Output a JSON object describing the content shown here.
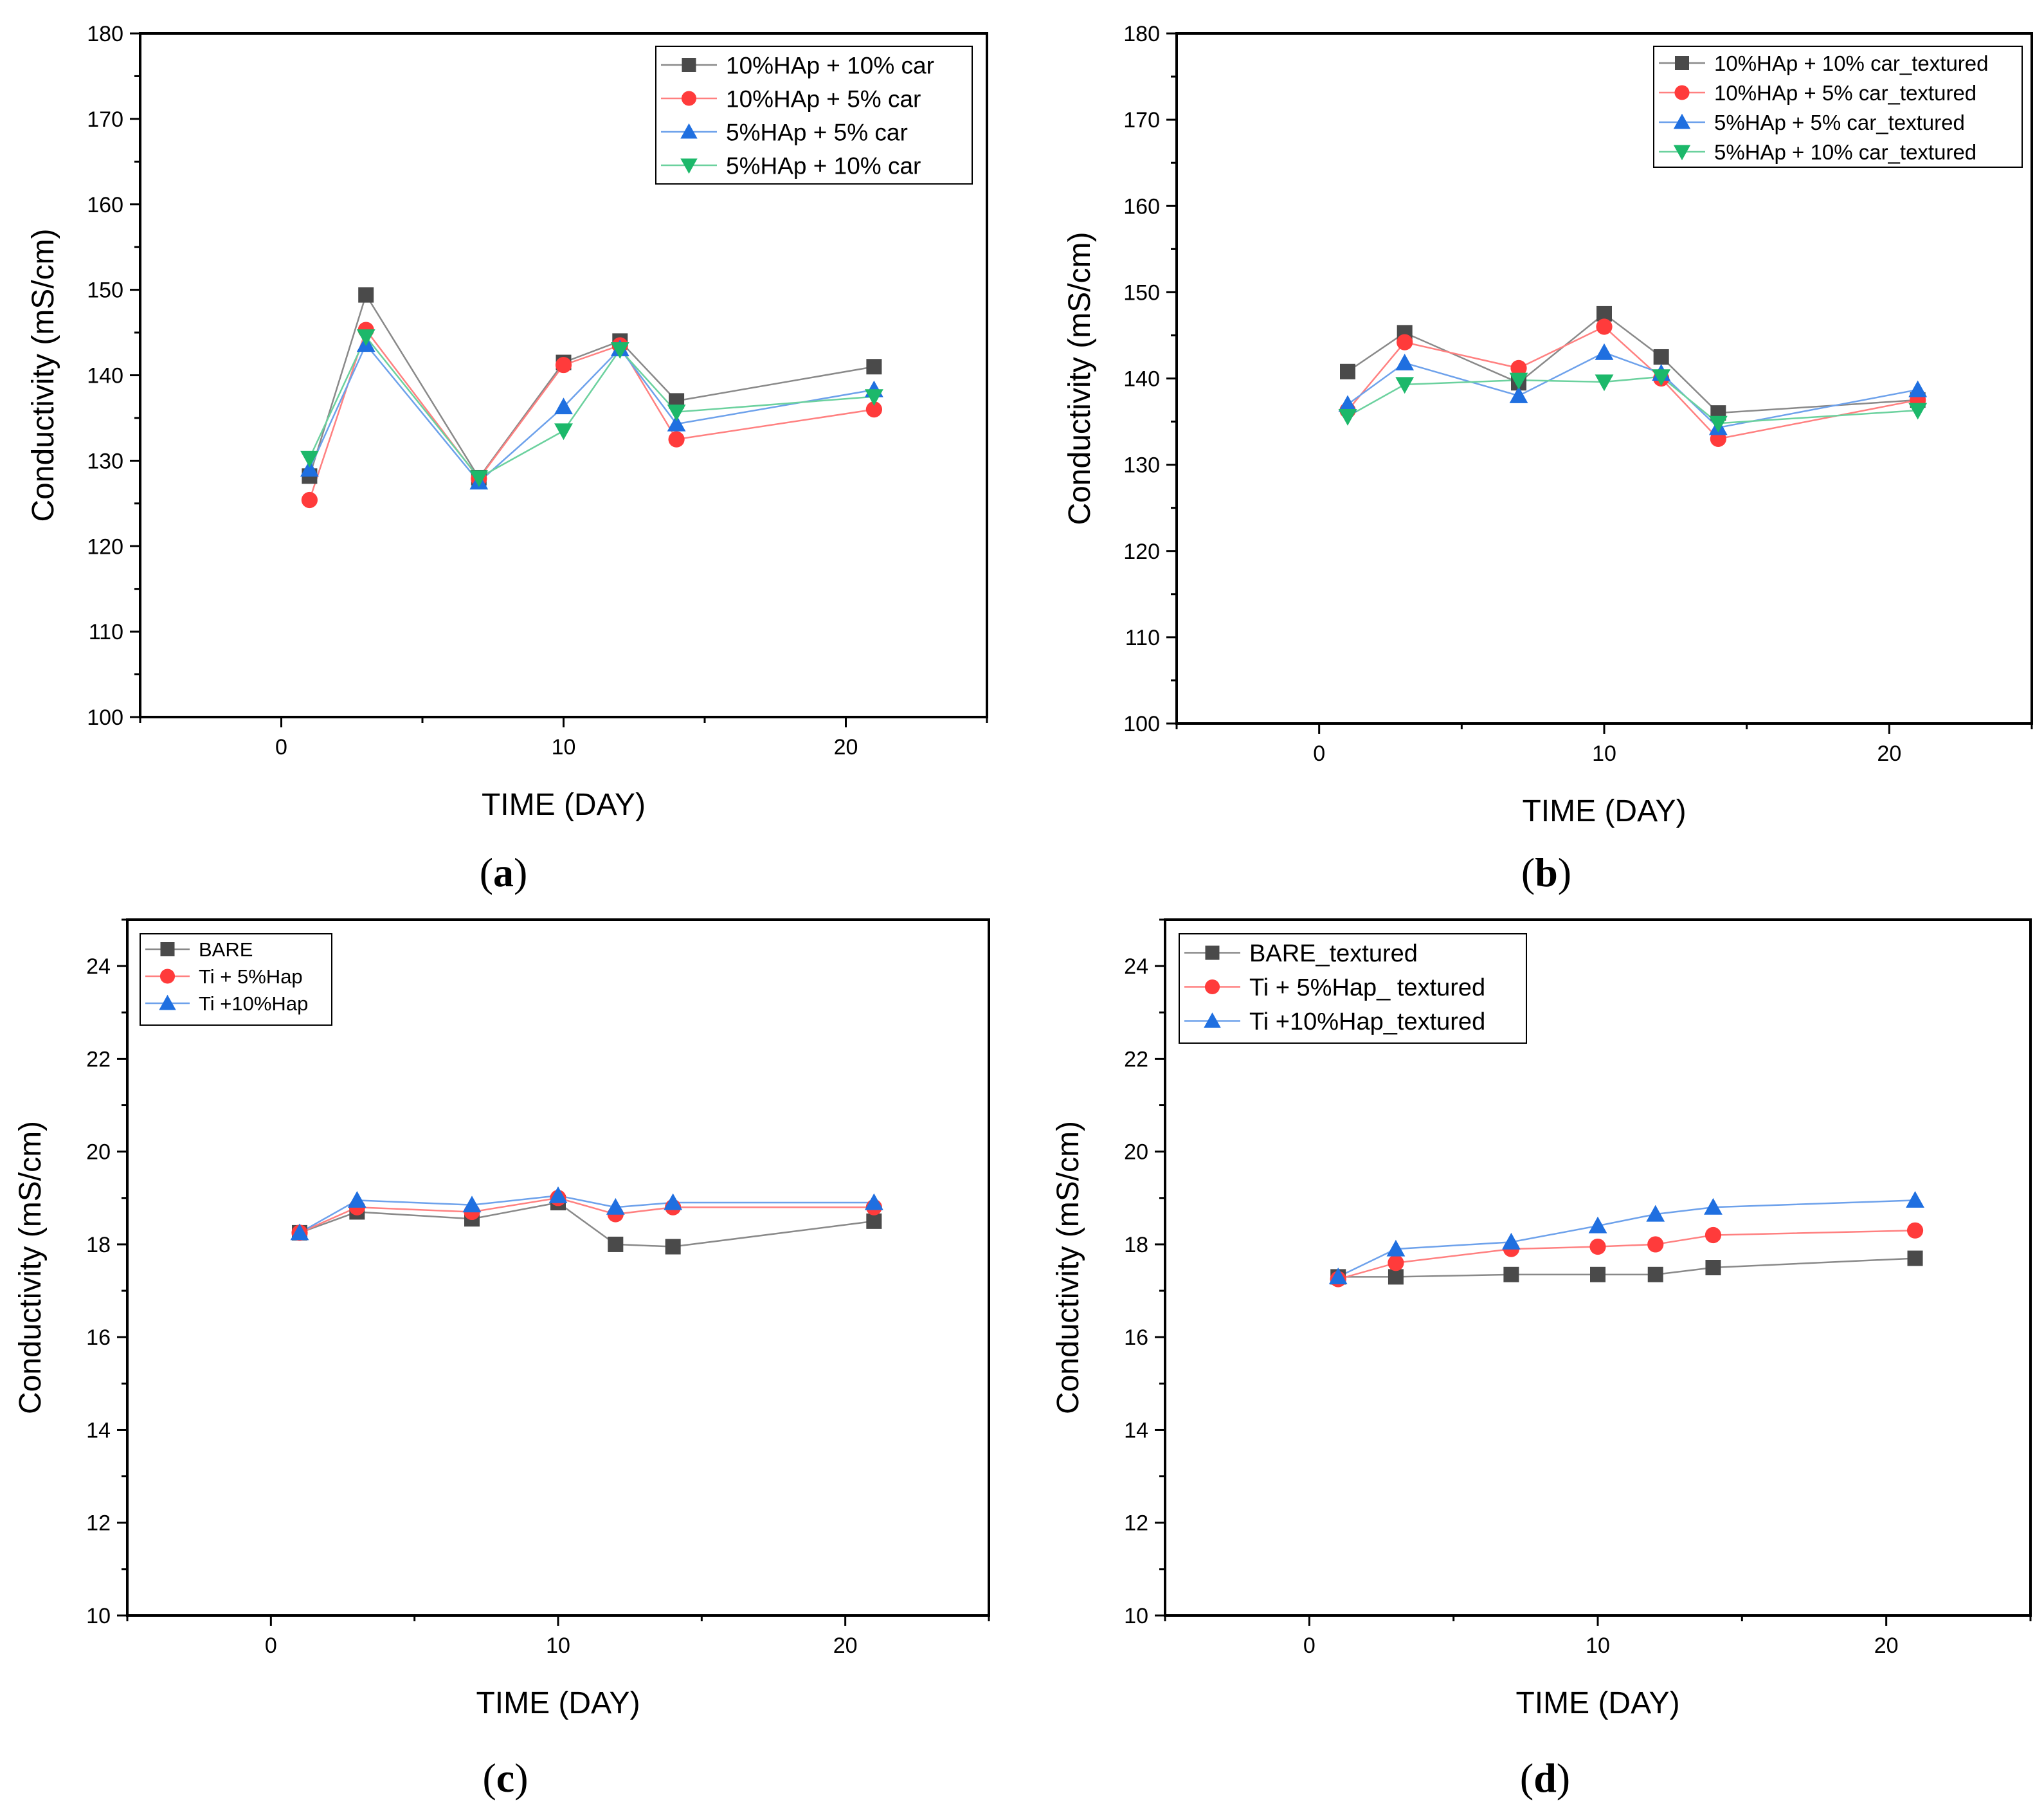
{
  "chart_data": [
    {
      "type": "line",
      "panel": "a",
      "xlabel": "TIME (DAY)",
      "ylabel": "Conductivity (mS/cm)",
      "xlim": [
        -5,
        25
      ],
      "ylim": [
        100,
        180
      ],
      "xticks": [
        0,
        10,
        20
      ],
      "yticks": [
        100,
        110,
        120,
        130,
        140,
        150,
        160,
        170,
        180
      ],
      "legend_position": "top-right",
      "series": [
        {
          "name": "10%HAp + 10% car",
          "marker": "square",
          "color": "#4a4a4a",
          "x": [
            1,
            3,
            7,
            10,
            12,
            14,
            21
          ],
          "y": [
            128.2,
            149.4,
            128.0,
            141.5,
            144.0,
            137.0,
            141.0
          ]
        },
        {
          "name": "10%HAp + 5% car",
          "marker": "circle",
          "color": "#ff3b3b",
          "x": [
            1,
            3,
            7,
            10,
            12,
            14,
            21
          ],
          "y": [
            125.4,
            145.3,
            127.9,
            141.2,
            143.5,
            132.5,
            136.0
          ]
        },
        {
          "name": "5%HAp + 5% car",
          "marker": "triangle-up",
          "color": "#1f6fe0",
          "x": [
            1,
            3,
            7,
            10,
            12,
            14,
            21
          ],
          "y": [
            129.0,
            143.6,
            127.5,
            136.3,
            143.1,
            134.3,
            138.3
          ]
        },
        {
          "name": "5%HAp + 10% car",
          "marker": "triangle-down",
          "color": "#1cb86a",
          "x": [
            1,
            3,
            7,
            10,
            12,
            14,
            21
          ],
          "y": [
            130.3,
            144.5,
            128.0,
            133.5,
            143.0,
            135.7,
            137.5
          ]
        }
      ]
    },
    {
      "type": "line",
      "panel": "b",
      "xlabel": "TIME (DAY)",
      "ylabel": "Conductivity (mS/cm)",
      "xlim": [
        -5,
        25
      ],
      "ylim": [
        100,
        180
      ],
      "xticks": [
        0,
        10,
        20
      ],
      "yticks": [
        100,
        110,
        120,
        130,
        140,
        150,
        160,
        170,
        180
      ],
      "legend_position": "top-right",
      "series": [
        {
          "name": "10%HAp + 10% car_textured",
          "marker": "square",
          "color": "#4a4a4a",
          "x": [
            1,
            3,
            7,
            10,
            12,
            14,
            21
          ],
          "y": [
            140.8,
            145.3,
            139.5,
            147.5,
            142.5,
            136.0,
            137.5
          ]
        },
        {
          "name": "10%HAp + 5% car_textured",
          "marker": "circle",
          "color": "#ff3b3b",
          "x": [
            1,
            3,
            7,
            10,
            12,
            14,
            21
          ],
          "y": [
            136.3,
            144.2,
            141.2,
            146.0,
            140.0,
            133.0,
            137.5
          ]
        },
        {
          "name": "5%HAp + 5% car_textured",
          "marker": "triangle-up",
          "color": "#1f6fe0",
          "x": [
            1,
            3,
            7,
            10,
            12,
            14,
            21
          ],
          "y": [
            137.0,
            141.8,
            138.0,
            143.0,
            140.6,
            134.3,
            138.7
          ]
        },
        {
          "name": "5%HAp + 10% car_textured",
          "marker": "triangle-down",
          "color": "#1cb86a",
          "x": [
            1,
            3,
            7,
            10,
            12,
            14,
            21
          ],
          "y": [
            135.6,
            139.3,
            139.8,
            139.6,
            140.2,
            134.8,
            136.3
          ]
        }
      ]
    },
    {
      "type": "line",
      "panel": "c",
      "xlabel": "TIME (DAY)",
      "ylabel": "Conductivity (mS/cm)",
      "xlim": [
        -5,
        25
      ],
      "ylim": [
        10,
        25
      ],
      "xticks": [
        0,
        10,
        20
      ],
      "yticks": [
        10,
        12,
        14,
        16,
        18,
        20,
        22,
        24
      ],
      "legend_position": "top-left",
      "series": [
        {
          "name": "BARE",
          "marker": "square",
          "color": "#4a4a4a",
          "x": [
            1,
            3,
            7,
            10,
            12,
            14,
            21
          ],
          "y": [
            18.25,
            18.7,
            18.55,
            18.9,
            18.0,
            17.95,
            18.5
          ]
        },
        {
          "name": "Ti + 5%Hap",
          "marker": "circle",
          "color": "#ff3b3b",
          "x": [
            1,
            3,
            7,
            10,
            12,
            14,
            21
          ],
          "y": [
            18.25,
            18.8,
            18.7,
            19.0,
            18.65,
            18.8,
            18.8
          ]
        },
        {
          "name": "Ti +10%Hap",
          "marker": "triangle-up",
          "color": "#1f6fe0",
          "x": [
            1,
            3,
            7,
            10,
            12,
            14,
            21
          ],
          "y": [
            18.25,
            18.95,
            18.85,
            19.05,
            18.8,
            18.9,
            18.9
          ]
        }
      ]
    },
    {
      "type": "line",
      "panel": "d",
      "xlabel": "TIME (DAY)",
      "ylabel": "Conductivity (mS/cm)",
      "xlim": [
        -5,
        25
      ],
      "ylim": [
        10,
        25
      ],
      "xticks": [
        0,
        10,
        20
      ],
      "yticks": [
        10,
        12,
        14,
        16,
        18,
        20,
        22,
        24
      ],
      "legend_position": "top-left",
      "series": [
        {
          "name": "BARE_textured",
          "marker": "square",
          "color": "#4a4a4a",
          "x": [
            1,
            3,
            7,
            10,
            12,
            14,
            21
          ],
          "y": [
            17.3,
            17.3,
            17.35,
            17.35,
            17.35,
            17.5,
            17.7
          ]
        },
        {
          "name": "Ti + 5%Hap_ textured",
          "marker": "circle",
          "color": "#ff3b3b",
          "x": [
            1,
            3,
            7,
            10,
            12,
            14,
            21
          ],
          "y": [
            17.25,
            17.6,
            17.9,
            17.95,
            18.0,
            18.2,
            18.3
          ]
        },
        {
          "name": "Ti +10%Hap_textured",
          "marker": "triangle-up",
          "color": "#1f6fe0",
          "x": [
            1,
            3,
            7,
            10,
            12,
            14,
            21
          ],
          "y": [
            17.3,
            17.9,
            18.05,
            18.4,
            18.65,
            18.8,
            18.95
          ]
        }
      ]
    }
  ],
  "panel_labels": [
    "a",
    "b",
    "c",
    "d"
  ]
}
